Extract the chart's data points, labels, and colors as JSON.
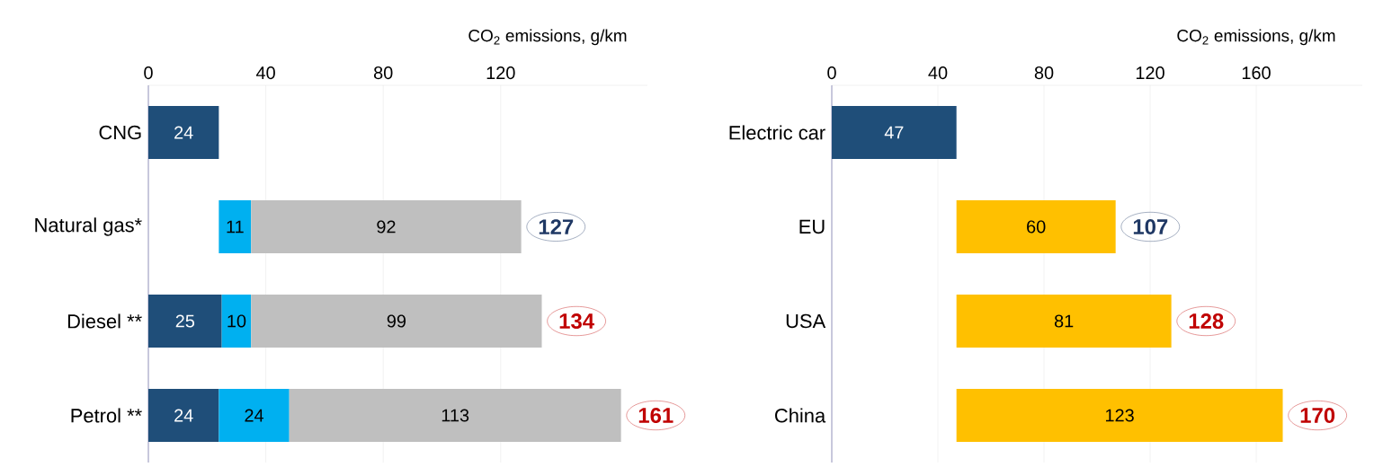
{
  "chart_data": [
    {
      "type": "bar",
      "orientation": "horizontal",
      "xlabel": "CO$_{2}$ emissions, g/km",
      "categories": [
        "CNG",
        "Natural gas*",
        "Diesel **",
        "Petrol **"
      ],
      "series": [
        {
          "color": "#1f4e79",
          "values": [
            24,
            null,
            25,
            24
          ],
          "base": [
            0,
            null,
            0,
            0
          ]
        },
        {
          "color": "#00b0f0",
          "values": [
            null,
            11,
            10,
            24
          ],
          "base": [
            null,
            24,
            25,
            24
          ]
        },
        {
          "color": "#bfbfbf",
          "values": [
            null,
            92,
            99,
            113
          ],
          "base": [
            null,
            35,
            35,
            48
          ]
        }
      ],
      "annotations": [
        {
          "text": "127",
          "x": 127,
          "y": "Natural gas*"
        },
        {
          "text": "134",
          "x": 134,
          "y": "Diesel **"
        },
        {
          "text": "161",
          "x": 161,
          "y": "Petrol **"
        }
      ],
      "xlim": [
        0,
        170
      ],
      "xticks": [
        0,
        40,
        80,
        120
      ],
      "grid": "x",
      "data_labels": true
    },
    {
      "type": "bar",
      "orientation": "horizontal",
      "xlabel": "CO$_{2}$ emissions, g/km",
      "categories": [
        "Electric car",
        "EU",
        "USA",
        "China"
      ],
      "series": [
        {
          "color": "#1f4e79",
          "values": [
            47,
            null,
            null,
            null
          ],
          "base": [
            0,
            null,
            null,
            null
          ]
        },
        {
          "color": "#ffc000",
          "values": [
            null,
            60,
            81,
            123
          ],
          "base": [
            null,
            47,
            47,
            47
          ]
        }
      ],
      "annotations": [
        {
          "text": "107",
          "x": 107,
          "y": "EU"
        },
        {
          "text": "128",
          "x": 128,
          "y": "USA"
        },
        {
          "text": "170",
          "x": 170,
          "y": "China"
        }
      ],
      "xlim": [
        0,
        200
      ],
      "xticks": [
        0,
        40,
        80,
        120,
        160
      ],
      "grid": "x",
      "data_labels": true
    }
  ]
}
